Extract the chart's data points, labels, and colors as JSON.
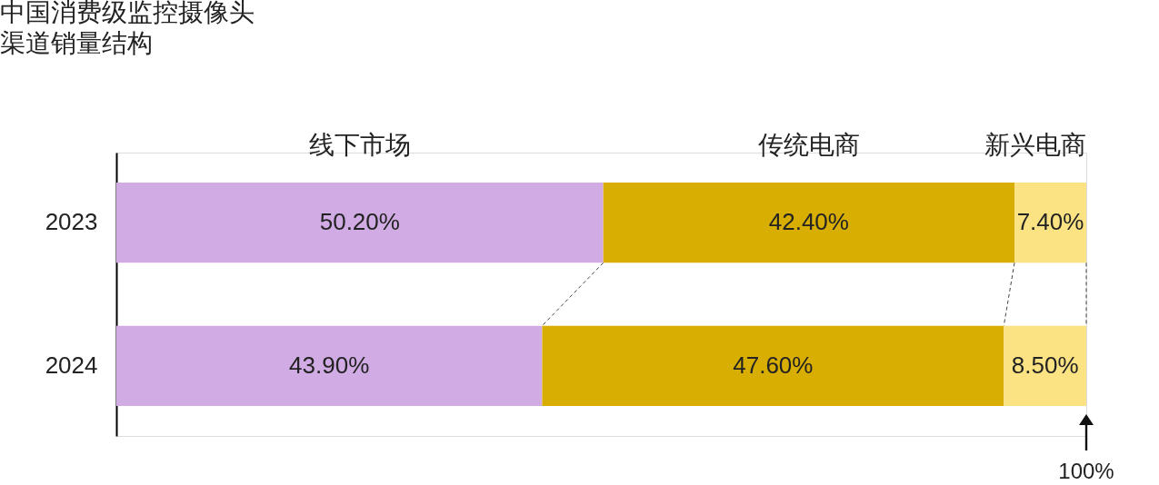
{
  "chart_data": {
    "type": "bar",
    "orientation": "horizontal",
    "stacked": true,
    "title": "中国消费级监控摄像头渠道销量结构",
    "categories": [
      "2023",
      "2024"
    ],
    "series": [
      {
        "name": "线下市场",
        "color": "#d1abe3",
        "values": [
          50.2,
          43.9
        ],
        "value_labels": [
          "50.20%",
          "43.90%"
        ]
      },
      {
        "name": "传统电商",
        "color": "#d8ae02",
        "values": [
          42.4,
          47.6
        ],
        "value_labels": [
          "42.40%",
          "47.60%"
        ]
      },
      {
        "name": "新兴电商",
        "color": "#fbe283",
        "values": [
          7.4,
          8.5
        ],
        "value_labels": [
          "7.40%",
          "8.50%"
        ]
      }
    ],
    "xlim": [
      0,
      100
    ],
    "tick_labels": "y",
    "annotations": [
      "100%"
    ]
  }
}
